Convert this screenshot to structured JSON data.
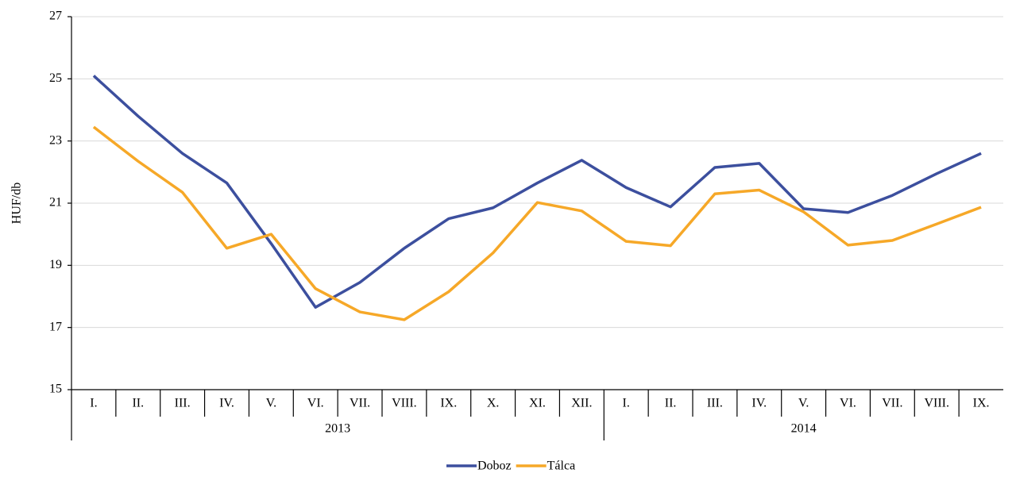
{
  "chart_data": {
    "type": "line",
    "y_label": "HUF/db",
    "groups": [
      {
        "name": "2013",
        "categories": [
          "I.",
          "II.",
          "III.",
          "IV.",
          "V.",
          "VI.",
          "VII.",
          "VIII.",
          "IX.",
          "X.",
          "XI.",
          "XII."
        ]
      },
      {
        "name": "2014",
        "categories": [
          "I.",
          "II.",
          "III.",
          "IV.",
          "V.",
          "VI.",
          "VII.",
          "VIII.",
          "IX."
        ]
      }
    ],
    "series": [
      {
        "name": "Doboz",
        "color": "#3c4f9e",
        "values": [
          25.1,
          23.8,
          22.6,
          21.65,
          19.7,
          17.65,
          18.45,
          19.55,
          20.5,
          20.85,
          21.65,
          22.38,
          21.5,
          20.88,
          22.15,
          22.28,
          20.82,
          20.7,
          21.25,
          21.95,
          22.6
        ]
      },
      {
        "name": "Tálca",
        "color": "#f6a828",
        "values": [
          23.45,
          22.35,
          21.35,
          19.55,
          20.0,
          18.25,
          17.5,
          17.25,
          18.15,
          19.4,
          21.02,
          20.75,
          19.77,
          19.63,
          21.3,
          21.42,
          20.72,
          19.65,
          19.8,
          20.33,
          20.87
        ]
      }
    ],
    "ylim": [
      15,
      27
    ],
    "yticks": [
      15,
      17,
      19,
      21,
      23,
      25,
      27
    ],
    "grid": true,
    "legend": "bottom"
  }
}
